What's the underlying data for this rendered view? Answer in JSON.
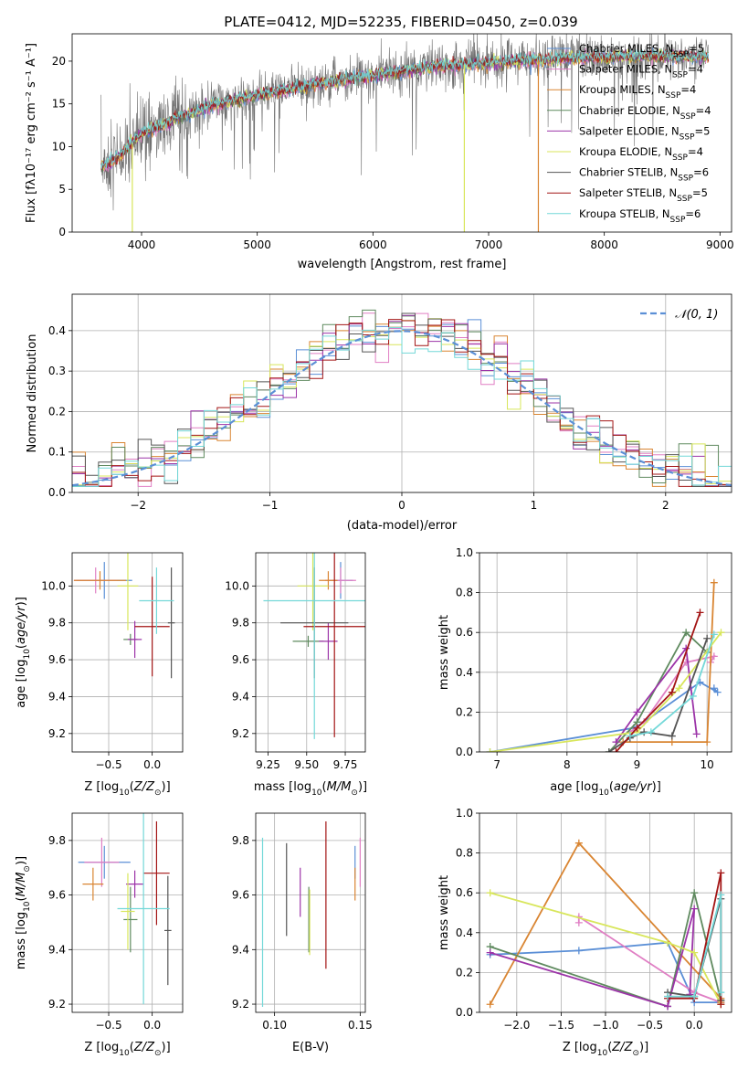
{
  "figure_title": "PLATE=0412, MJD=52235, FIBERID=0450, z=0.039",
  "colors": {
    "Chabrier MILES": "#5b8fd6",
    "Salpeter MILES": "#e07fc4",
    "Kroupa MILES": "#d98532",
    "Chabrier ELODIE": "#5f8a5f",
    "Salpeter ELODIE": "#9c34a8",
    "Kroupa ELODIE": "#d8e65b",
    "Chabrier STELIB": "#555555",
    "Salpeter STELIB": "#a31515",
    "Kroupa STELIB": "#73d8d8"
  },
  "chart_data": [
    {
      "id": "spectrum",
      "type": "line",
      "title": "PLATE=0412, MJD=52235, FIBERID=0450, z=0.039",
      "xlabel": "wavelength [Angstrom, rest frame]",
      "ylabel": "Flux [fλ10⁻¹⁷ erg cm⁻² s⁻¹ A⁻¹]",
      "xlim": [
        3400,
        9100
      ],
      "ylim": [
        0,
        23.2
      ],
      "xticks": [
        4000,
        5000,
        6000,
        7000,
        8000,
        9000
      ],
      "yticks": [
        0,
        5,
        10,
        15,
        20
      ],
      "grid": false,
      "legend_position": "top-right",
      "continuum": {
        "x": [
          3650,
          3800,
          4000,
          4300,
          4600,
          5000,
          5500,
          6000,
          6500,
          7000,
          7500,
          8000,
          8500,
          8900
        ],
        "y": [
          7.5,
          8.8,
          11.5,
          13.3,
          14.8,
          16.0,
          17.3,
          18.3,
          19.3,
          19.8,
          20.2,
          20.5,
          20.6,
          20.5
        ]
      },
      "data_x_range": [
        3650,
        8900
      ],
      "series": [
        {
          "label_main": "Chabrier MILES, N",
          "label_sub": "SSP",
          "label_tail": "=5"
        },
        {
          "label_main": "Salpeter MILES, N",
          "label_sub": "SSP",
          "label_tail": "=4"
        },
        {
          "label_main": "Kroupa MILES, N",
          "label_sub": "SSP",
          "label_tail": "=4"
        },
        {
          "label_main": "Chabrier ELODIE, N",
          "label_sub": "SSP",
          "label_tail": "=4"
        },
        {
          "label_main": "Salpeter ELODIE, N",
          "label_sub": "SSP",
          "label_tail": "=5"
        },
        {
          "label_main": "Kroupa ELODIE, N",
          "label_sub": "SSP",
          "label_tail": "=4"
        },
        {
          "label_main": "Chabrier STELIB, N",
          "label_sub": "SSP",
          "label_tail": "=6"
        },
        {
          "label_main": "Salpeter STELIB, N",
          "label_sub": "SSP",
          "label_tail": "=5"
        },
        {
          "label_main": "Kroupa STELIB, N",
          "label_sub": "SSP",
          "label_tail": "=6"
        }
      ]
    },
    {
      "id": "residuals",
      "type": "line",
      "xlabel": "(data-model)/error",
      "ylabel": "Normed distribution",
      "xlim": [
        -2.5,
        2.5
      ],
      "ylim": [
        0,
        0.49
      ],
      "xticks": [
        -2,
        -1,
        0,
        1,
        2
      ],
      "yticks": [
        0.0,
        0.1,
        0.2,
        0.3,
        0.4
      ],
      "grid": true,
      "legend_position": "top-right",
      "gaussian_label": "𝒩(0, 1)",
      "bin_width": 0.1
    },
    {
      "id": "age_vs_Z",
      "type": "scatter",
      "xlabel": "Z [log10(Z/Z⊙)]",
      "ylabel": "age  [log10(age/yr)]",
      "xlim": [
        -0.92,
        0.35
      ],
      "ylim": [
        9.1,
        10.18
      ],
      "xticks": [
        -0.5,
        0.0
      ],
      "yticks": [
        9.2,
        9.4,
        9.6,
        9.8,
        10.0
      ],
      "points": [
        {
          "s": "Chabrier MILES",
          "x": -0.55,
          "y": 10.03,
          "xerr": 0.32,
          "yerr": 0.1
        },
        {
          "s": "Salpeter MILES",
          "x": -0.65,
          "y": 10.03,
          "xerr": 0.25,
          "yerr": 0.07
        },
        {
          "s": "Kroupa MILES",
          "x": -0.6,
          "y": 10.03,
          "xerr": 0.3,
          "yerr": 0.05
        },
        {
          "s": "Chabrier ELODIE",
          "x": -0.25,
          "y": 9.71,
          "xerr": 0.08,
          "yerr": 0.03
        },
        {
          "s": "Salpeter ELODIE",
          "x": -0.2,
          "y": 9.71,
          "xerr": 0.08,
          "yerr": 0.1
        },
        {
          "s": "Kroupa ELODIE",
          "x": -0.28,
          "y": 10.0,
          "xerr": 0.12,
          "yerr": 0.24
        },
        {
          "s": "Chabrier STELIB",
          "x": 0.22,
          "y": 9.8,
          "xerr": 0.04,
          "yerr": 0.3
        },
        {
          "s": "Salpeter STELIB",
          "x": 0.0,
          "y": 9.78,
          "xerr": 0.2,
          "yerr": 0.27
        },
        {
          "s": "Kroupa STELIB",
          "x": 0.05,
          "y": 9.92,
          "xerr": 0.2,
          "yerr": 0.18
        }
      ]
    },
    {
      "id": "age_vs_mass",
      "type": "scatter",
      "xlabel": "mass [log10(M/M⊙)]",
      "ylabel": "",
      "xlim": [
        9.17,
        9.88
      ],
      "ylim": [
        9.1,
        10.18
      ],
      "xticks": [
        9.25,
        9.5,
        9.75
      ],
      "yticks": [
        9.2,
        9.4,
        9.6,
        9.8,
        10.0
      ],
      "points": [
        {
          "s": "Chabrier MILES",
          "x": 9.72,
          "y": 10.03,
          "xerr": 0.08,
          "yerr": 0.1
        },
        {
          "s": "Salpeter MILES",
          "x": 9.72,
          "y": 10.03,
          "xerr": 0.1,
          "yerr": 0.07
        },
        {
          "s": "Kroupa MILES",
          "x": 9.64,
          "y": 10.03,
          "xerr": 0.06,
          "yerr": 0.05
        },
        {
          "s": "Chabrier ELODIE",
          "x": 9.51,
          "y": 9.7,
          "xerr": 0.1,
          "yerr": 0.03
        },
        {
          "s": "Salpeter ELODIE",
          "x": 9.64,
          "y": 9.7,
          "xerr": 0.06,
          "yerr": 0.1
        },
        {
          "s": "Kroupa ELODIE",
          "x": 9.54,
          "y": 10.0,
          "xerr": 0.1,
          "yerr": 0.24
        },
        {
          "s": "Chabrier STELIB",
          "x": 9.55,
          "y": 9.8,
          "xerr": 0.22,
          "yerr": 0.3
        },
        {
          "s": "Salpeter STELIB",
          "x": 9.68,
          "y": 9.78,
          "xerr": 0.2,
          "yerr": 0.6
        },
        {
          "s": "Kroupa STELIB",
          "x": 9.55,
          "y": 9.92,
          "xerr": 0.33,
          "yerr": 0.75
        }
      ]
    },
    {
      "id": "weight_vs_age",
      "type": "line",
      "xlabel": "age  [log10(age/yr)]",
      "ylabel": "mass weight",
      "xlim": [
        6.75,
        10.35
      ],
      "ylim": [
        0,
        1.0
      ],
      "xticks": [
        7,
        8,
        9,
        10
      ],
      "yticks": [
        0.0,
        0.2,
        0.4,
        0.6,
        0.8,
        1.0
      ],
      "series": [
        {
          "s": "Chabrier MILES",
          "x": [
            6.9,
            8.95,
            9.1,
            9.9,
            10.15,
            10.1
          ],
          "y": [
            0.0,
            0.12,
            0.15,
            0.35,
            0.3,
            0.32
          ]
        },
        {
          "s": "Salpeter MILES",
          "x": [
            8.9,
            9.1,
            9.7,
            10.1,
            10.05
          ],
          "y": [
            0.1,
            0.15,
            0.45,
            0.48,
            0.45
          ]
        },
        {
          "s": "Kroupa MILES",
          "x": [
            8.8,
            9.5,
            10.0,
            10.1
          ],
          "y": [
            0.05,
            0.05,
            0.05,
            0.85
          ]
        },
        {
          "s": "Chabrier ELODIE",
          "x": [
            8.6,
            9.0,
            9.7,
            10.0
          ],
          "y": [
            0.0,
            0.15,
            0.6,
            0.5
          ]
        },
        {
          "s": "Salpeter ELODIE",
          "x": [
            8.7,
            9.0,
            9.7,
            9.85
          ],
          "y": [
            0.05,
            0.2,
            0.52,
            0.09
          ]
        },
        {
          "s": "Kroupa ELODIE",
          "x": [
            6.9,
            9.0,
            9.6,
            10.2
          ],
          "y": [
            0.0,
            0.1,
            0.32,
            0.6
          ]
        },
        {
          "s": "Chabrier STELIB",
          "x": [
            8.6,
            8.9,
            9.1,
            9.5,
            10.0
          ],
          "y": [
            0.0,
            0.07,
            0.1,
            0.08,
            0.57
          ]
        },
        {
          "s": "Salpeter STELIB",
          "x": [
            8.7,
            9.0,
            9.5,
            9.9
          ],
          "y": [
            0.0,
            0.12,
            0.3,
            0.7
          ]
        },
        {
          "s": "Kroupa STELIB",
          "x": [
            8.9,
            9.2,
            9.8,
            10.1
          ],
          "y": [
            0.08,
            0.1,
            0.28,
            0.59
          ]
        }
      ]
    },
    {
      "id": "mass_vs_Z",
      "type": "scatter",
      "xlabel": "Z [log10(Z/Z⊙)]",
      "ylabel": "mass [log10(M/M⊙)]",
      "xlim": [
        -0.92,
        0.35
      ],
      "ylim": [
        9.17,
        9.9
      ],
      "xticks": [
        -0.5,
        0.0
      ],
      "yticks": [
        9.2,
        9.4,
        9.6,
        9.8
      ],
      "points": [
        {
          "s": "Chabrier MILES",
          "x": -0.55,
          "y": 9.72,
          "xerr": 0.3,
          "yerr": 0.06
        },
        {
          "s": "Salpeter MILES",
          "x": -0.58,
          "y": 9.72,
          "xerr": 0.2,
          "yerr": 0.09
        },
        {
          "s": "Kroupa MILES",
          "x": -0.68,
          "y": 9.64,
          "xerr": 0.12,
          "yerr": 0.06
        },
        {
          "s": "Chabrier ELODIE",
          "x": -0.25,
          "y": 9.51,
          "xerr": 0.08,
          "yerr": 0.12
        },
        {
          "s": "Salpeter ELODIE",
          "x": -0.2,
          "y": 9.64,
          "xerr": 0.1,
          "yerr": 0.05
        },
        {
          "s": "Kroupa ELODIE",
          "x": -0.28,
          "y": 9.54,
          "xerr": 0.08,
          "yerr": 0.14
        },
        {
          "s": "Chabrier STELIB",
          "x": 0.18,
          "y": 9.47,
          "xerr": 0.04,
          "yerr": 0.2
        },
        {
          "s": "Salpeter STELIB",
          "x": 0.05,
          "y": 9.68,
          "xerr": 0.15,
          "yerr": 0.19
        },
        {
          "s": "Kroupa STELIB",
          "x": -0.1,
          "y": 9.55,
          "xerr": 0.3,
          "yerr": 0.35
        }
      ]
    },
    {
      "id": "mass_vs_EBV",
      "type": "scatter",
      "xlabel": "E(B-V)",
      "ylabel": "",
      "xlim": [
        0.089,
        0.153
      ],
      "ylim": [
        9.17,
        9.9
      ],
      "xticks": [
        0.1,
        0.15
      ],
      "yticks": [
        9.2,
        9.4,
        9.6,
        9.8
      ],
      "points": [
        {
          "s": "Chabrier MILES",
          "x": 0.147,
          "y": 9.72,
          "xerr": 0.0,
          "yerr": 0.06
        },
        {
          "s": "Salpeter MILES",
          "x": 0.15,
          "y": 9.72,
          "xerr": 0.0,
          "yerr": 0.09
        },
        {
          "s": "Kroupa MILES",
          "x": 0.147,
          "y": 9.64,
          "xerr": 0.0,
          "yerr": 0.06
        },
        {
          "s": "Chabrier ELODIE",
          "x": 0.12,
          "y": 9.51,
          "xerr": 0.0,
          "yerr": 0.12
        },
        {
          "s": "Salpeter ELODIE",
          "x": 0.115,
          "y": 9.61,
          "xerr": 0.0,
          "yerr": 0.09
        },
        {
          "s": "Kroupa ELODIE",
          "x": 0.1205,
          "y": 9.5,
          "xerr": 0.0,
          "yerr": 0.12
        },
        {
          "s": "Chabrier STELIB",
          "x": 0.107,
          "y": 9.62,
          "xerr": 0.0,
          "yerr": 0.17
        },
        {
          "s": "Salpeter STELIB",
          "x": 0.13,
          "y": 9.6,
          "xerr": 0.0,
          "yerr": 0.27
        },
        {
          "s": "Kroupa STELIB",
          "x": 0.093,
          "y": 9.5,
          "xerr": 0.0,
          "yerr": 0.31
        }
      ]
    },
    {
      "id": "weight_vs_Z",
      "type": "line",
      "xlabel": "Z [log10(Z/Z⊙)]",
      "ylabel": "mass weight",
      "xlim": [
        -2.42,
        0.42
      ],
      "ylim": [
        0,
        1.0
      ],
      "xticks": [
        -2.0,
        -1.5,
        -1.0,
        -0.5,
        0.0
      ],
      "yticks": [
        0.0,
        0.2,
        0.4,
        0.6,
        0.8,
        1.0
      ],
      "series": [
        {
          "s": "Chabrier MILES",
          "x": [
            -2.3,
            -1.3,
            -0.3,
            0.0,
            0.3
          ],
          "y": [
            0.29,
            0.31,
            0.35,
            0.05,
            0.05
          ]
        },
        {
          "s": "Salpeter MILES",
          "x": [
            -1.3,
            -1.3,
            0.0,
            0.3
          ],
          "y": [
            0.45,
            0.48,
            0.1,
            0.05
          ]
        },
        {
          "s": "Kroupa MILES",
          "x": [
            -2.3,
            -1.3,
            0.3,
            0.3
          ],
          "y": [
            0.04,
            0.85,
            0.07,
            0.05
          ]
        },
        {
          "s": "Chabrier ELODIE",
          "x": [
            -2.3,
            -0.3,
            0.0,
            0.3
          ],
          "y": [
            0.33,
            0.03,
            0.6,
            0.06
          ]
        },
        {
          "s": "Salpeter ELODIE",
          "x": [
            -2.3,
            -0.3,
            0.0,
            -0.05
          ],
          "y": [
            0.3,
            0.03,
            0.52,
            0.09
          ]
        },
        {
          "s": "Kroupa ELODIE",
          "x": [
            -2.3,
            -0.3,
            0.0,
            0.3
          ],
          "y": [
            0.6,
            0.35,
            0.3,
            0.04
          ]
        },
        {
          "s": "Chabrier STELIB",
          "x": [
            -0.3,
            0.0,
            0.3,
            0.3
          ],
          "y": [
            0.1,
            0.08,
            0.57,
            0.06
          ]
        },
        {
          "s": "Salpeter STELIB",
          "x": [
            -0.3,
            0.0,
            0.3,
            0.3
          ],
          "y": [
            0.07,
            0.07,
            0.7,
            0.04
          ]
        },
        {
          "s": "Kroupa STELIB",
          "x": [
            -0.3,
            0.0,
            0.3,
            0.3
          ],
          "y": [
            0.08,
            0.08,
            0.59,
            0.1
          ]
        }
      ]
    }
  ]
}
